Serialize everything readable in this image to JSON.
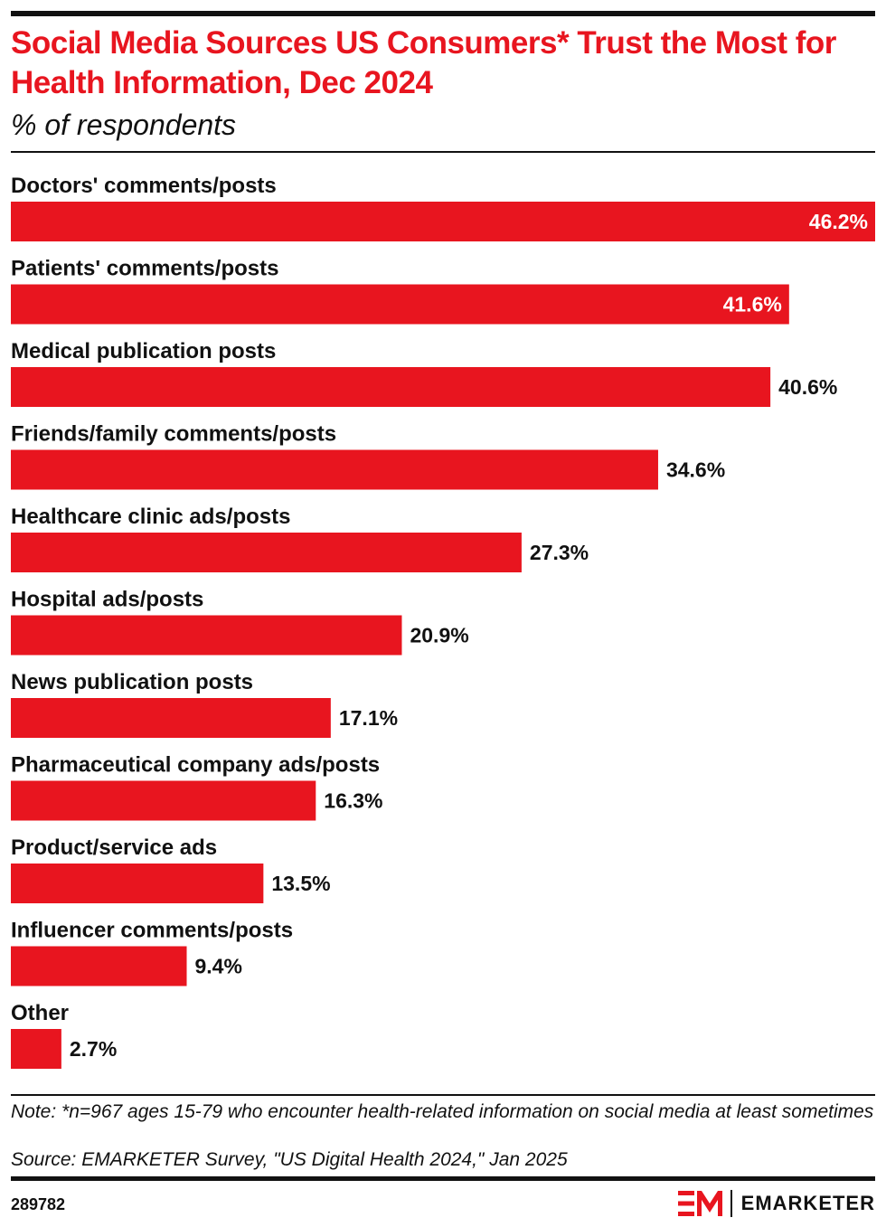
{
  "header": {
    "title": "Social Media Sources US Consumers* Trust the Most for Health Information, Dec 2024",
    "subtitle": "% of respondents"
  },
  "chart_data": {
    "type": "bar",
    "orientation": "horizontal",
    "title": "Social Media Sources US Consumers* Trust the Most for Health Information, Dec 2024",
    "subtitle": "% of respondents",
    "categories": [
      "Doctors' comments/posts",
      "Patients' comments/posts",
      "Medical publication posts",
      "Friends/family comments/posts",
      "Healthcare clinic ads/posts",
      "Hospital ads/posts",
      "News publication posts",
      "Pharmaceutical company ads/posts",
      "Product/service ads",
      "Influencer comments/posts",
      "Other"
    ],
    "values": [
      46.2,
      41.6,
      40.6,
      34.6,
      27.3,
      20.9,
      17.1,
      16.3,
      13.5,
      9.4,
      2.7
    ],
    "value_labels": [
      "46.2%",
      "41.6%",
      "40.6%",
      "34.6%",
      "27.3%",
      "20.9%",
      "17.1%",
      "16.3%",
      "13.5%",
      "9.4%",
      "2.7%"
    ],
    "xlim": [
      0,
      46.2
    ],
    "grid": false,
    "legend": "none",
    "bar_color": "#e8151f"
  },
  "footer": {
    "note": "Note: *n=967 ages 15-79 who encounter health-related information on social media at least sometimes",
    "source": "Source: EMARKETER Survey, \"US Digital Health 2024,\" Jan 2025",
    "chart_id": "289782",
    "brand": "EMARKETER"
  },
  "colors": {
    "accent": "#e8151f",
    "text": "#111111",
    "label_on_bar": "#ffffff"
  },
  "icons": {
    "logo": "emarketer-em-logo-icon"
  }
}
